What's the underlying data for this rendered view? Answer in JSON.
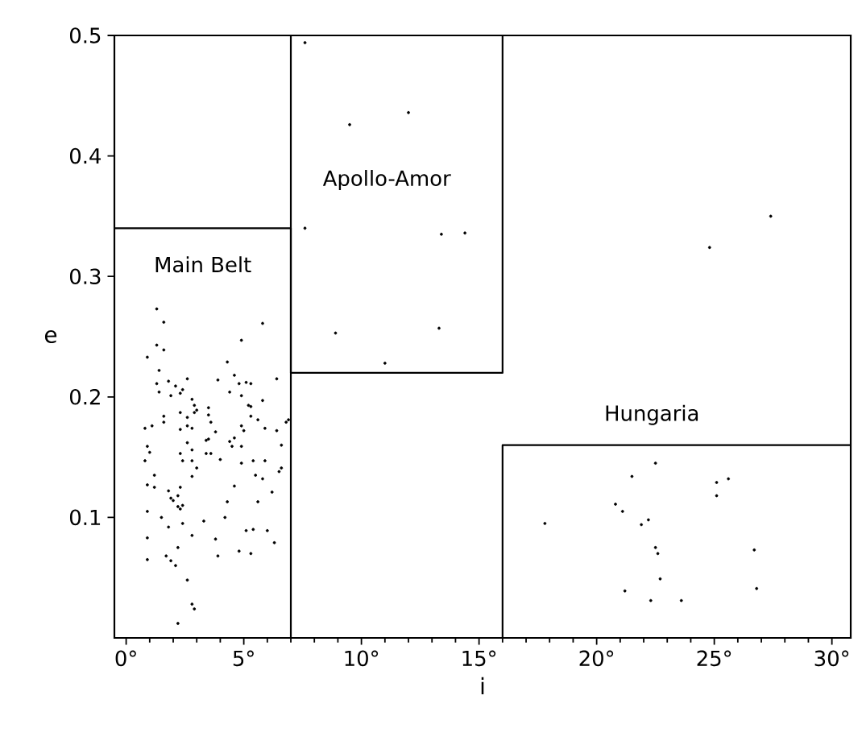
{
  "chart_data": {
    "type": "scatter",
    "xlabel": "i",
    "ylabel": "e",
    "xlim": [
      -0.5,
      30.8
    ],
    "ylim": [
      0,
      0.5
    ],
    "xticks": [
      {
        "value": 0,
        "label": "0°"
      },
      {
        "value": 5,
        "label": "5°"
      },
      {
        "value": 10,
        "label": "10°"
      },
      {
        "value": 15,
        "label": "15°"
      },
      {
        "value": 20,
        "label": "20°"
      },
      {
        "value": 25,
        "label": "25°"
      },
      {
        "value": 30,
        "label": "30°"
      }
    ],
    "yticks": [
      0.1,
      0.2,
      0.3,
      0.4,
      0.5
    ],
    "marker": "circle",
    "series": [
      {
        "color": "#000000",
        "x": [
          1.3,
          1.6,
          0.9,
          1.3,
          1.6,
          1.4,
          1.8,
          1.3,
          1.4,
          2.1,
          2.3,
          1.9,
          2.4,
          2.6,
          2.8,
          2.9,
          1.6,
          2.3,
          1.6,
          0.8,
          1.1,
          2.3,
          2.6,
          2.9,
          3.0,
          2.6,
          2.8,
          3.5,
          3.5,
          3.6,
          3.8,
          3.4,
          3.5,
          3.6,
          3.4,
          2.6,
          2.8,
          2.3,
          2.4,
          0.9,
          0.8,
          1.0,
          1.2,
          0.9,
          1.2,
          1.8,
          1.9,
          2.3,
          2.2,
          2.8,
          3.0,
          2.8,
          2.4,
          2.0,
          2.2,
          2.4,
          2.3,
          0.9,
          1.5,
          1.8,
          3.3,
          0.9,
          1.7,
          1.9,
          2.1,
          2.2,
          2.8,
          3.8,
          3.9,
          4.2,
          0.9,
          2.6,
          2.8,
          2.9,
          2.2,
          3.9,
          4.3,
          4.4,
          4.6,
          4.8,
          4.9,
          5.1,
          5.3,
          5.2,
          5.3,
          4.9,
          5.0,
          4.6,
          4.4,
          4.5,
          4.0,
          4.9,
          4.9,
          5.4,
          5.5,
          5.9,
          5.8,
          6.2,
          6.5,
          6.6,
          6.6,
          6.4,
          6.8,
          6.9,
          5.9,
          5.6,
          5.8,
          5.3,
          6.4,
          5.8,
          4.9,
          4.6,
          4.3,
          5.1,
          5.4,
          5.3,
          4.8,
          6.0,
          6.3,
          5.6,
          7.6,
          9.5,
          12.0,
          7.6,
          13.4,
          14.4,
          8.9,
          13.3,
          11.0,
          24.8,
          27.4,
          17.8,
          21.5,
          22.5,
          20.8,
          21.1,
          21.9,
          22.2,
          22.5,
          22.6,
          22.7,
          21.2,
          22.3,
          23.6,
          25.1,
          25.1,
          25.6,
          26.7,
          26.8
        ],
        "values": [
          0.273,
          0.262,
          0.233,
          0.243,
          0.239,
          0.222,
          0.213,
          0.211,
          0.204,
          0.209,
          0.203,
          0.201,
          0.206,
          0.215,
          0.198,
          0.193,
          0.184,
          0.187,
          0.179,
          0.174,
          0.176,
          0.173,
          0.183,
          0.187,
          0.189,
          0.176,
          0.174,
          0.191,
          0.185,
          0.179,
          0.171,
          0.164,
          0.165,
          0.153,
          0.153,
          0.162,
          0.156,
          0.153,
          0.147,
          0.159,
          0.147,
          0.154,
          0.135,
          0.127,
          0.125,
          0.122,
          0.116,
          0.125,
          0.118,
          0.147,
          0.141,
          0.134,
          0.11,
          0.114,
          0.109,
          0.095,
          0.107,
          0.105,
          0.1,
          0.092,
          0.097,
          0.083,
          0.068,
          0.064,
          0.06,
          0.075,
          0.085,
          0.082,
          0.068,
          0.1,
          0.065,
          0.048,
          0.028,
          0.024,
          0.012,
          0.214,
          0.229,
          0.204,
          0.218,
          0.211,
          0.201,
          0.212,
          0.211,
          0.193,
          0.184,
          0.176,
          0.172,
          0.166,
          0.163,
          0.159,
          0.148,
          0.159,
          0.145,
          0.147,
          0.135,
          0.147,
          0.132,
          0.121,
          0.138,
          0.141,
          0.16,
          0.172,
          0.179,
          0.181,
          0.174,
          0.181,
          0.197,
          0.192,
          0.215,
          0.261,
          0.247,
          0.126,
          0.113,
          0.089,
          0.09,
          0.07,
          0.072,
          0.089,
          0.079,
          0.113,
          0.494,
          0.426,
          0.436,
          0.34,
          0.335,
          0.336,
          0.253,
          0.257,
          0.228,
          0.324,
          0.35,
          0.095,
          0.134,
          0.145,
          0.111,
          0.105,
          0.094,
          0.098,
          0.075,
          0.07,
          0.049,
          0.039,
          0.031,
          0.031,
          0.129,
          0.118,
          0.132,
          0.073,
          0.041
        ]
      },
      {
        "type": "line",
        "color": "#000000",
        "marker": "none",
        "x": [
          -0.5,
          7,
          7
        ],
        "values": [
          0.34,
          0.34,
          0
        ]
      },
      {
        "type": "line",
        "color": "#000000",
        "marker": "none",
        "x": [
          7,
          7,
          16,
          16
        ],
        "values": [
          0.5,
          0.22,
          0.22,
          0.5
        ]
      },
      {
        "type": "line",
        "color": "#000000",
        "marker": "none",
        "x": [
          16,
          16,
          30.8
        ],
        "values": [
          0,
          0.16,
          0.16
        ]
      }
    ],
    "annotations": [
      "Main Belt",
      "Apollo-Amor",
      "Hungaria"
    ]
  }
}
